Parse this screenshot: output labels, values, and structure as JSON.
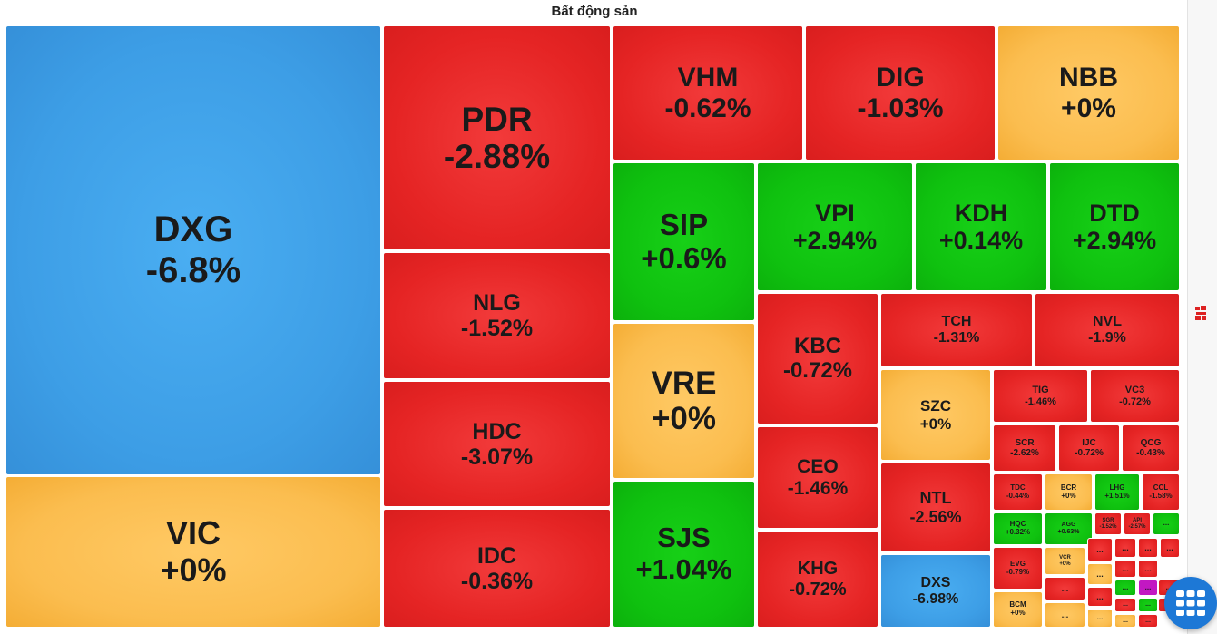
{
  "title": "Bất động sản",
  "colors": {
    "red": "#e52424",
    "green": "#0fc10f",
    "yellow": "#fbbd4f",
    "blue": "#3d9ee6",
    "purple": "#c218c2"
  },
  "grid_button": {
    "icon": "grid-icon"
  },
  "tiles": [
    {
      "sym": "DXG",
      "chg": "-6.8%",
      "c": "blue"
    },
    {
      "sym": "VIC",
      "chg": "+0%",
      "c": "yellow"
    },
    {
      "sym": "PDR",
      "chg": "-2.88%",
      "c": "red"
    },
    {
      "sym": "NLG",
      "chg": "-1.52%",
      "c": "red"
    },
    {
      "sym": "HDC",
      "chg": "-3.07%",
      "c": "red"
    },
    {
      "sym": "IDC",
      "chg": "-0.36%",
      "c": "red"
    },
    {
      "sym": "VHM",
      "chg": "-0.62%",
      "c": "red"
    },
    {
      "sym": "DIG",
      "chg": "-1.03%",
      "c": "red"
    },
    {
      "sym": "NBB",
      "chg": "+0%",
      "c": "yellow"
    },
    {
      "sym": "SIP",
      "chg": "+0.6%",
      "c": "green"
    },
    {
      "sym": "VRE",
      "chg": "+0%",
      "c": "yellow"
    },
    {
      "sym": "SJS",
      "chg": "+1.04%",
      "c": "green"
    },
    {
      "sym": "VPI",
      "chg": "+2.94%",
      "c": "green"
    },
    {
      "sym": "KDH",
      "chg": "+0.14%",
      "c": "green"
    },
    {
      "sym": "DTD",
      "chg": "+2.94%",
      "c": "green"
    },
    {
      "sym": "KBC",
      "chg": "-0.72%",
      "c": "red"
    },
    {
      "sym": "CEO",
      "chg": "-1.46%",
      "c": "red"
    },
    {
      "sym": "KHG",
      "chg": "-0.72%",
      "c": "red"
    },
    {
      "sym": "TCH",
      "chg": "-1.31%",
      "c": "red"
    },
    {
      "sym": "NVL",
      "chg": "-1.9%",
      "c": "red"
    },
    {
      "sym": "SZC",
      "chg": "+0%",
      "c": "yellow"
    },
    {
      "sym": "NTL",
      "chg": "-2.56%",
      "c": "red"
    },
    {
      "sym": "DXS",
      "chg": "-6.98%",
      "c": "blue"
    },
    {
      "sym": "TIG",
      "chg": "-1.46%",
      "c": "red"
    },
    {
      "sym": "VC3",
      "chg": "-0.72%",
      "c": "red"
    },
    {
      "sym": "SCR",
      "chg": "-2.62%",
      "c": "red"
    },
    {
      "sym": "IJC",
      "chg": "-0.72%",
      "c": "red"
    },
    {
      "sym": "QCG",
      "chg": "-0.43%",
      "c": "red"
    },
    {
      "sym": "TDC",
      "chg": "-0.44%",
      "c": "red"
    },
    {
      "sym": "BCR",
      "chg": "+0%",
      "c": "yellow"
    },
    {
      "sym": "LHG",
      "chg": "+1.51%",
      "c": "green"
    },
    {
      "sym": "CCL",
      "chg": "-1.58%",
      "c": "red"
    },
    {
      "sym": "HQC",
      "chg": "+0.32%",
      "c": "green"
    },
    {
      "sym": "AGG",
      "chg": "+0.63%",
      "c": "green"
    },
    {
      "sym": "SGR",
      "chg": "-1.52%",
      "c": "red"
    },
    {
      "sym": "API",
      "chg": "-2.57%",
      "c": "red"
    },
    {
      "sym": "...",
      "chg": "",
      "c": "green"
    },
    {
      "sym": "EVG",
      "chg": "-0.79%",
      "c": "red"
    },
    {
      "sym": "VCR",
      "chg": "+0%",
      "c": "yellow"
    },
    {
      "sym": "BCM",
      "chg": "+0%",
      "c": "yellow"
    },
    {
      "sym": "...",
      "chg": "",
      "c": "red"
    },
    {
      "sym": "...",
      "chg": "",
      "c": "yellow"
    },
    {
      "sym": "...",
      "chg": "",
      "c": "red"
    },
    {
      "sym": "...",
      "chg": "",
      "c": "red"
    },
    {
      "sym": "...",
      "chg": "",
      "c": "red"
    },
    {
      "sym": "...",
      "chg": "",
      "c": "red"
    },
    {
      "sym": "...",
      "chg": "",
      "c": "yellow"
    },
    {
      "sym": "...",
      "chg": "",
      "c": "red"
    },
    {
      "sym": "...",
      "chg": "",
      "c": "red"
    },
    {
      "sym": "...",
      "chg": "",
      "c": "red"
    },
    {
      "sym": "...",
      "chg": "",
      "c": "green"
    },
    {
      "sym": "...",
      "chg": "",
      "c": "purple"
    },
    {
      "sym": "...",
      "chg": "",
      "c": "red"
    },
    {
      "sym": "...",
      "chg": "",
      "c": "yellow"
    },
    {
      "sym": "...",
      "chg": "",
      "c": "red"
    },
    {
      "sym": "...",
      "chg": "",
      "c": "green"
    },
    {
      "sym": "...",
      "chg": "",
      "c": "red"
    },
    {
      "sym": "...",
      "chg": "",
      "c": "yellow"
    },
    {
      "sym": "...",
      "chg": "",
      "c": "red"
    }
  ]
}
